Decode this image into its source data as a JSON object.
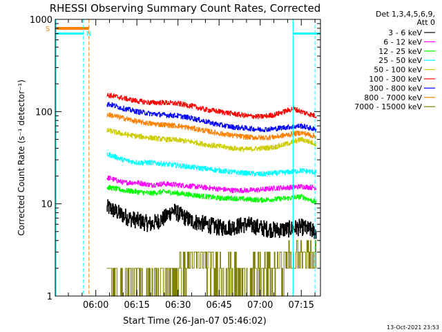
{
  "chart_data": {
    "type": "line",
    "title": "RHESSI Observing Summary Count Rates, Corrected",
    "xlabel": "Start Time (26-Jan-07 05:46:02)",
    "ylabel": "Corrected Count Rate (s⁻¹ detector⁻¹)",
    "y_scale": "log",
    "ylim": [
      1,
      1000
    ],
    "xlim_minutes": [
      -14.8,
      82
    ],
    "x_ticks": [
      {
        "m": 0,
        "label": "06:00"
      },
      {
        "m": 15,
        "label": "06:15"
      },
      {
        "m": 30,
        "label": "06:30"
      },
      {
        "m": 45,
        "label": "06:45"
      },
      {
        "m": 60,
        "label": "07:00"
      },
      {
        "m": 75,
        "label": "07:15"
      }
    ],
    "y_ticks": [
      {
        "v": 1,
        "label": "1"
      },
      {
        "v": 10,
        "label": "10"
      },
      {
        "v": 100,
        "label": "100"
      },
      {
        "v": 1000,
        "label": "1000"
      }
    ],
    "legend_header": [
      "Det 1,3,4,5,6,9,",
      "Att 0"
    ],
    "legend_position": "right",
    "series": [
      {
        "name": "3 - 6 keV",
        "color": "#000000",
        "points": [
          [
            5,
            9
          ],
          [
            8,
            8
          ],
          [
            12,
            7
          ],
          [
            16,
            6.5
          ],
          [
            20,
            6
          ],
          [
            25,
            7
          ],
          [
            28,
            8.5
          ],
          [
            31,
            7.5
          ],
          [
            35,
            6.5
          ],
          [
            40,
            6
          ],
          [
            45,
            5.5
          ],
          [
            50,
            5.6
          ],
          [
            55,
            6
          ],
          [
            60,
            5.5
          ],
          [
            65,
            5.2
          ],
          [
            70,
            5.3
          ],
          [
            75,
            5.6
          ],
          [
            80,
            5
          ]
        ]
      },
      {
        "name": "6 - 12 keV",
        "color": "#ff00ff",
        "points": [
          [
            5,
            19
          ],
          [
            10,
            17
          ],
          [
            15,
            17
          ],
          [
            20,
            16
          ],
          [
            25,
            16.5
          ],
          [
            30,
            16
          ],
          [
            35,
            15.5
          ],
          [
            40,
            15
          ],
          [
            45,
            14.5
          ],
          [
            50,
            14
          ],
          [
            55,
            14
          ],
          [
            60,
            14.2
          ],
          [
            65,
            14.8
          ],
          [
            70,
            15
          ],
          [
            75,
            15.4
          ],
          [
            80,
            15
          ]
        ]
      },
      {
        "name": "12 - 25 keV",
        "color": "#00ff00",
        "points": [
          [
            5,
            15
          ],
          [
            10,
            14
          ],
          [
            15,
            13.5
          ],
          [
            20,
            13
          ],
          [
            25,
            13.5
          ],
          [
            30,
            13
          ],
          [
            35,
            12.5
          ],
          [
            40,
            12
          ],
          [
            45,
            11.5
          ],
          [
            50,
            11.5
          ],
          [
            55,
            11.2
          ],
          [
            60,
            11
          ],
          [
            65,
            11.2
          ],
          [
            70,
            11.5
          ],
          [
            75,
            12
          ],
          [
            80,
            10.5
          ]
        ]
      },
      {
        "name": "25 - 50 keV",
        "color": "#00ffff",
        "points": [
          [
            5,
            34
          ],
          [
            10,
            30
          ],
          [
            15,
            28
          ],
          [
            20,
            28
          ],
          [
            25,
            27
          ],
          [
            30,
            26
          ],
          [
            35,
            25
          ],
          [
            40,
            24
          ],
          [
            45,
            23
          ],
          [
            50,
            22
          ],
          [
            55,
            21.5
          ],
          [
            60,
            21
          ],
          [
            65,
            21.5
          ],
          [
            70,
            22
          ],
          [
            75,
            23
          ],
          [
            80,
            22
          ]
        ]
      },
      {
        "name": "50 - 100 keV",
        "color": "#cccc00",
        "points": [
          [
            5,
            62
          ],
          [
            10,
            57
          ],
          [
            15,
            54
          ],
          [
            20,
            52
          ],
          [
            25,
            50
          ],
          [
            30,
            49
          ],
          [
            35,
            47
          ],
          [
            40,
            44
          ],
          [
            45,
            42
          ],
          [
            50,
            40
          ],
          [
            55,
            39
          ],
          [
            60,
            40
          ],
          [
            65,
            41
          ],
          [
            70,
            45
          ],
          [
            75,
            50
          ],
          [
            80,
            45
          ]
        ]
      },
      {
        "name": "100 - 300 keV",
        "color": "#ff0000",
        "points": [
          [
            5,
            150
          ],
          [
            10,
            140
          ],
          [
            15,
            130
          ],
          [
            20,
            125
          ],
          [
            25,
            125
          ],
          [
            30,
            122
          ],
          [
            35,
            115
          ],
          [
            40,
            105
          ],
          [
            45,
            100
          ],
          [
            50,
            95
          ],
          [
            55,
            90
          ],
          [
            60,
            88
          ],
          [
            65,
            92
          ],
          [
            70,
            103
          ],
          [
            72,
            108
          ],
          [
            75,
            100
          ],
          [
            80,
            90
          ]
        ]
      },
      {
        "name": "300 - 800 keV",
        "color": "#0000ff",
        "points": [
          [
            5,
            120
          ],
          [
            10,
            108
          ],
          [
            15,
            100
          ],
          [
            20,
            95
          ],
          [
            25,
            92
          ],
          [
            30,
            90
          ],
          [
            35,
            85
          ],
          [
            40,
            78
          ],
          [
            45,
            72
          ],
          [
            50,
            68
          ],
          [
            55,
            66
          ],
          [
            60,
            64
          ],
          [
            65,
            65
          ],
          [
            70,
            68
          ],
          [
            75,
            70
          ],
          [
            80,
            64
          ]
        ]
      },
      {
        "name": "800 - 7000 keV",
        "color": "#ff8000",
        "points": [
          [
            5,
            92
          ],
          [
            10,
            85
          ],
          [
            15,
            78
          ],
          [
            20,
            74
          ],
          [
            25,
            72
          ],
          [
            30,
            70
          ],
          [
            35,
            66
          ],
          [
            40,
            62
          ],
          [
            45,
            58
          ],
          [
            50,
            55
          ],
          [
            55,
            53
          ],
          [
            60,
            52
          ],
          [
            65,
            53
          ],
          [
            70,
            56
          ],
          [
            75,
            59
          ],
          [
            80,
            54
          ]
        ]
      },
      {
        "name": "7000 - 15000 keV",
        "color": "#808000",
        "points": [
          [
            5,
            1.5
          ],
          [
            15,
            1.3
          ],
          [
            25,
            1.3
          ],
          [
            35,
            2.5
          ],
          [
            45,
            2
          ],
          [
            55,
            1.5
          ],
          [
            65,
            2
          ],
          [
            70,
            2.5
          ],
          [
            75,
            3
          ],
          [
            80,
            2.5
          ]
        ]
      }
    ],
    "annotations": [
      {
        "label": "S",
        "color": "#ff8000"
      },
      {
        "label": "N",
        "color": "#00ffff"
      }
    ],
    "footer_date": "13-Oct-2021 23:53"
  }
}
